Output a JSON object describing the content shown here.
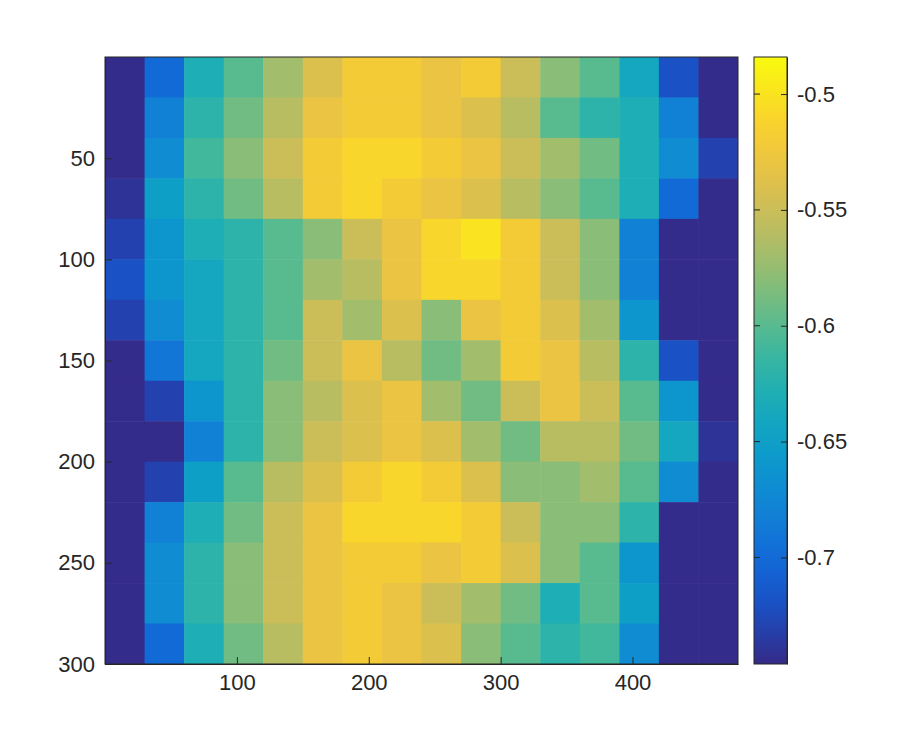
{
  "chart_data": {
    "type": "heatmap",
    "x": [
      15,
      45,
      75,
      105,
      135,
      165,
      195,
      225,
      255,
      285,
      315,
      345,
      375,
      405,
      435,
      465
    ],
    "y": [
      10,
      30,
      50,
      70,
      90,
      110,
      130,
      150,
      170,
      190,
      210,
      230,
      250,
      270,
      290
    ],
    "values": [
      [
        -0.745,
        -0.7,
        -0.63,
        -0.6,
        -0.57,
        -0.54,
        -0.52,
        -0.52,
        -0.53,
        -0.52,
        -0.55,
        -0.58,
        -0.6,
        -0.64,
        -0.72,
        -0.745
      ],
      [
        -0.745,
        -0.68,
        -0.62,
        -0.59,
        -0.56,
        -0.53,
        -0.52,
        -0.52,
        -0.53,
        -0.54,
        -0.56,
        -0.6,
        -0.62,
        -0.63,
        -0.68,
        -0.745
      ],
      [
        -0.745,
        -0.67,
        -0.61,
        -0.58,
        -0.55,
        -0.52,
        -0.51,
        -0.51,
        -0.52,
        -0.53,
        -0.55,
        -0.57,
        -0.59,
        -0.63,
        -0.67,
        -0.73
      ],
      [
        -0.74,
        -0.65,
        -0.62,
        -0.59,
        -0.56,
        -0.52,
        -0.51,
        -0.52,
        -0.53,
        -0.54,
        -0.56,
        -0.58,
        -0.6,
        -0.63,
        -0.7,
        -0.745
      ],
      [
        -0.73,
        -0.66,
        -0.63,
        -0.62,
        -0.6,
        -0.58,
        -0.55,
        -0.53,
        -0.51,
        -0.5,
        -0.52,
        -0.55,
        -0.58,
        -0.68,
        -0.745,
        -0.745
      ],
      [
        -0.72,
        -0.66,
        -0.64,
        -0.62,
        -0.6,
        -0.57,
        -0.56,
        -0.53,
        -0.51,
        -0.51,
        -0.52,
        -0.55,
        -0.58,
        -0.68,
        -0.745,
        -0.745
      ],
      [
        -0.73,
        -0.67,
        -0.64,
        -0.62,
        -0.6,
        -0.55,
        -0.57,
        -0.54,
        -0.58,
        -0.53,
        -0.52,
        -0.54,
        -0.57,
        -0.66,
        -0.745,
        -0.745
      ],
      [
        -0.745,
        -0.69,
        -0.64,
        -0.62,
        -0.59,
        -0.55,
        -0.53,
        -0.56,
        -0.59,
        -0.57,
        -0.52,
        -0.53,
        -0.56,
        -0.62,
        -0.72,
        -0.745
      ],
      [
        -0.745,
        -0.73,
        -0.66,
        -0.62,
        -0.58,
        -0.56,
        -0.54,
        -0.53,
        -0.57,
        -0.59,
        -0.55,
        -0.53,
        -0.55,
        -0.6,
        -0.66,
        -0.745
      ],
      [
        -0.745,
        -0.745,
        -0.68,
        -0.62,
        -0.58,
        -0.55,
        -0.54,
        -0.53,
        -0.54,
        -0.57,
        -0.59,
        -0.56,
        -0.56,
        -0.59,
        -0.64,
        -0.74
      ],
      [
        -0.745,
        -0.73,
        -0.65,
        -0.6,
        -0.56,
        -0.54,
        -0.52,
        -0.51,
        -0.52,
        -0.54,
        -0.58,
        -0.58,
        -0.57,
        -0.6,
        -0.67,
        -0.745
      ],
      [
        -0.745,
        -0.68,
        -0.63,
        -0.59,
        -0.55,
        -0.53,
        -0.51,
        -0.51,
        -0.51,
        -0.52,
        -0.55,
        -0.58,
        -0.58,
        -0.62,
        -0.745,
        -0.745
      ],
      [
        -0.745,
        -0.67,
        -0.62,
        -0.58,
        -0.55,
        -0.53,
        -0.52,
        -0.52,
        -0.53,
        -0.52,
        -0.54,
        -0.58,
        -0.6,
        -0.66,
        -0.745,
        -0.745
      ],
      [
        -0.745,
        -0.67,
        -0.62,
        -0.58,
        -0.55,
        -0.53,
        -0.52,
        -0.53,
        -0.55,
        -0.57,
        -0.59,
        -0.63,
        -0.6,
        -0.65,
        -0.745,
        -0.745
      ],
      [
        -0.745,
        -0.7,
        -0.63,
        -0.59,
        -0.56,
        -0.53,
        -0.52,
        -0.53,
        -0.54,
        -0.58,
        -0.6,
        -0.62,
        -0.61,
        -0.67,
        -0.745,
        -0.745
      ]
    ],
    "xlim": [
      0,
      480
    ],
    "ylim": [
      0,
      300
    ],
    "xticks": [
      100,
      200,
      300,
      400
    ],
    "yticks": [
      50,
      100,
      150,
      200,
      250,
      300
    ],
    "colorbar": {
      "range": [
        -0.746,
        -0.484
      ],
      "ticks": [
        -0.5,
        -0.55,
        -0.6,
        -0.65,
        -0.7
      ]
    }
  }
}
